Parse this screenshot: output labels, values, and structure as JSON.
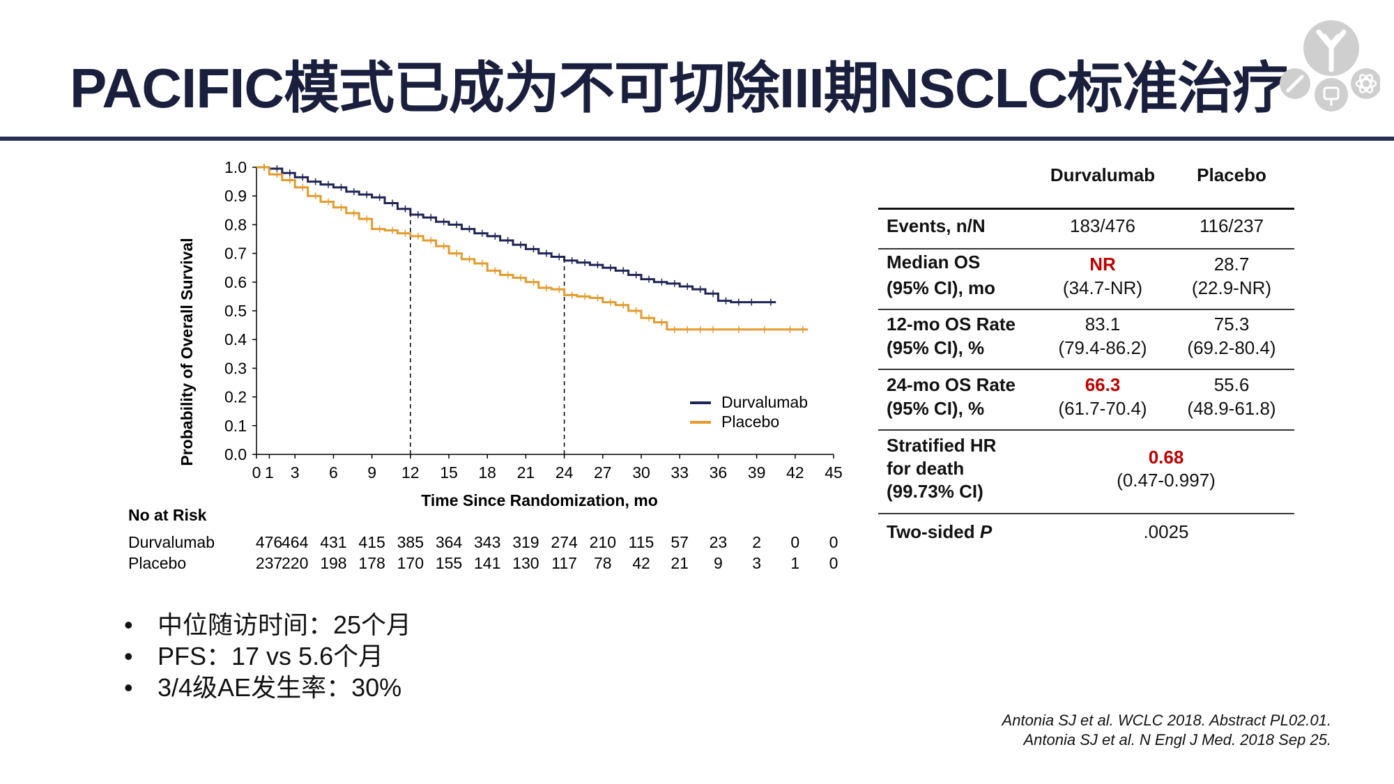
{
  "slide": {
    "title": "PACIFIC模式已成为不可切除III期NSCLC标准治疗"
  },
  "logo": {
    "icon": "antibody-molecule-logo"
  },
  "chart_data": {
    "type": "line",
    "subtype": "kaplan-meier",
    "xlabel": "Time Since Randomization, mo",
    "ylabel": "Probability of Overall Survival",
    "xlim": [
      0,
      45
    ],
    "ylim": [
      0,
      1
    ],
    "x_ticks": [
      0,
      1,
      3,
      6,
      9,
      12,
      15,
      18,
      21,
      24,
      27,
      30,
      33,
      36,
      39,
      42,
      45
    ],
    "x_tick_labels": [
      "0",
      "1",
      "3",
      "6",
      "9",
      "12",
      "15",
      "18",
      "21",
      "24",
      "27",
      "30",
      "33",
      "36",
      "39",
      "42",
      "45"
    ],
    "y_ticks": [
      0.0,
      0.1,
      0.2,
      0.3,
      0.4,
      0.5,
      0.6,
      0.7,
      0.8,
      0.9,
      1.0
    ],
    "y_tick_labels": [
      "0.0",
      "0.1",
      "0.2",
      "0.3",
      "0.4",
      "0.5",
      "0.6",
      "0.7",
      "0.8",
      "0.9",
      "1.0"
    ],
    "reference_lines_x": [
      12,
      24
    ],
    "legend_position": "lower-right",
    "series": [
      {
        "name": "Durvalumab",
        "color": "#1f2454",
        "x": [
          0,
          1,
          2,
          3,
          4,
          5,
          6,
          7,
          8,
          9,
          10,
          11,
          12,
          13,
          14,
          15,
          16,
          17,
          18,
          19,
          20,
          21,
          22,
          23,
          24,
          25,
          26,
          27,
          28,
          29,
          30,
          31,
          32,
          33,
          34,
          35,
          36,
          37,
          38,
          39,
          40.5
        ],
        "y": [
          1.0,
          0.995,
          0.98,
          0.965,
          0.95,
          0.94,
          0.93,
          0.915,
          0.905,
          0.895,
          0.875,
          0.855,
          0.835,
          0.825,
          0.81,
          0.8,
          0.785,
          0.77,
          0.76,
          0.745,
          0.73,
          0.715,
          0.7,
          0.688,
          0.675,
          0.668,
          0.66,
          0.65,
          0.64,
          0.625,
          0.61,
          0.6,
          0.595,
          0.585,
          0.575,
          0.56,
          0.535,
          0.53,
          0.53,
          0.53,
          0.53
        ]
      },
      {
        "name": "Placebo",
        "color": "#e39b2c",
        "x": [
          0,
          1,
          2,
          3,
          4,
          5,
          6,
          7,
          8,
          9,
          10,
          11,
          12,
          13,
          14,
          15,
          16,
          17,
          18,
          19,
          20,
          21,
          22,
          23,
          24,
          25,
          26,
          27,
          28,
          29,
          30,
          31,
          32,
          33,
          34,
          35,
          36,
          38,
          40,
          42,
          43
        ],
        "y": [
          1.0,
          0.975,
          0.955,
          0.93,
          0.9,
          0.88,
          0.86,
          0.84,
          0.82,
          0.785,
          0.78,
          0.77,
          0.76,
          0.745,
          0.725,
          0.7,
          0.68,
          0.665,
          0.64,
          0.625,
          0.615,
          0.6,
          0.58,
          0.575,
          0.555,
          0.55,
          0.545,
          0.53,
          0.52,
          0.5,
          0.475,
          0.46,
          0.435,
          0.435,
          0.435,
          0.435,
          0.435,
          0.435,
          0.435,
          0.435,
          0.435
        ]
      }
    ]
  },
  "legend": {
    "items": [
      {
        "label": "Durvalumab",
        "color": "#1f2454"
      },
      {
        "label": "Placebo",
        "color": "#e39b2c"
      }
    ]
  },
  "risk_table": {
    "title": "No at Risk",
    "rows": [
      {
        "label": "Durvalumab",
        "values": [
          "476",
          "464",
          "431",
          "415",
          "385",
          "364",
          "343",
          "319",
          "274",
          "210",
          "115",
          "57",
          "23",
          "2",
          "0",
          "0"
        ]
      },
      {
        "label": "Placebo",
        "values": [
          "237",
          "220",
          "198",
          "178",
          "170",
          "155",
          "141",
          "130",
          "117",
          "78",
          "42",
          "21",
          "9",
          "3",
          "1",
          "0"
        ]
      }
    ]
  },
  "results_table": {
    "col_headers": [
      "Durvalumab",
      "Placebo"
    ],
    "rows": [
      {
        "label_lines": [
          "Events, n/N"
        ],
        "durva": [
          "183/476"
        ],
        "placebo": [
          "116/237"
        ]
      },
      {
        "label_lines": [
          "Median OS",
          "(95% CI), mo"
        ],
        "durva": [
          "NR",
          "(34.7-NR)"
        ],
        "placebo": [
          "28.7",
          "(22.9-NR)"
        ]
      },
      {
        "label_lines": [
          "12-mo OS Rate",
          "(95% CI), %"
        ],
        "durva": [
          "83.1",
          "(79.4-86.2)"
        ],
        "placebo": [
          "75.3",
          "(69.2-80.4)"
        ]
      },
      {
        "label_lines": [
          "24-mo OS Rate",
          "(95% CI), %"
        ],
        "durva": [
          "66.3",
          "(61.7-70.4)"
        ],
        "placebo": [
          "55.6",
          "(48.9-61.8)"
        ]
      },
      {
        "label_lines": [
          "Stratified HR",
          "for death",
          "(99.73% CI)"
        ],
        "combined": [
          "0.68",
          "(0.47-0.997)"
        ]
      },
      {
        "label_main": "Two-sided ",
        "label_italic": "P",
        "combined": [
          ".0025"
        ]
      }
    ]
  },
  "bullets": {
    "marker": "•",
    "items": [
      "中位随访时间：25个月",
      "PFS：17 vs 5.6个月",
      "3/4级AE发生率：30%"
    ]
  },
  "references": [
    "Antonia SJ et al. WCLC 2018. Abstract PL02.01.",
    "Antonia SJ et al. N Engl J Med. 2018 Sep 25."
  ],
  "colors": {
    "title": "#1a1f3d",
    "rule": "#2a2f52",
    "highlight": "#c00000"
  }
}
